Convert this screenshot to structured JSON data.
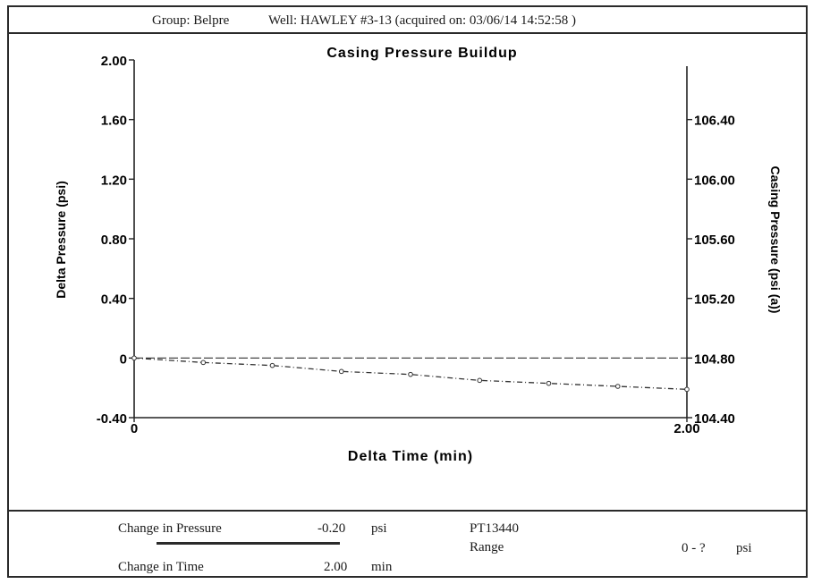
{
  "header": {
    "group": "Group: Belpre",
    "well": "Well: HAWLEY #3-13 (acquired on: 03/06/14 14:52:58 )"
  },
  "chart_data": {
    "type": "line",
    "title": "Casing Pressure Buildup",
    "xlabel": "Delta Time (min)",
    "ylabel": "Delta Pressure (psi)",
    "y2label": "Casing Pressure (psi (a))",
    "xlim": [
      0,
      2.0
    ],
    "ylim": [
      -0.4,
      2.0
    ],
    "y2lim": [
      104.4,
      106.8
    ],
    "x_ticks": [
      "0",
      "2.00"
    ],
    "y_ticks": [
      "-0.40",
      "0",
      "0.40",
      "0.80",
      "1.20",
      "1.60",
      "2.00"
    ],
    "y2_ticks": [
      "104.40",
      "104.80",
      "105.20",
      "105.60",
      "106.00",
      "106.40"
    ],
    "series": [
      {
        "x": [
          0,
          0.25,
          0.5,
          0.75,
          1.0,
          1.25,
          1.5,
          1.75,
          2.0
        ],
        "y": [
          0,
          -0.03,
          -0.05,
          -0.09,
          -0.11,
          -0.15,
          -0.17,
          -0.19,
          -0.21
        ],
        "style": "dash-dot with markers"
      }
    ],
    "reference_line": {
      "y": 0,
      "style": "dashed"
    }
  },
  "footer": {
    "pressure_label": "Change in Pressure",
    "pressure_value": "-0.20",
    "pressure_unit": "psi",
    "time_label": "Change in Time",
    "time_value": "2.00",
    "time_unit": "min",
    "gauge_id": "PT13440",
    "range_label": "Range",
    "range_value": "0 - ?",
    "range_unit": "psi"
  }
}
